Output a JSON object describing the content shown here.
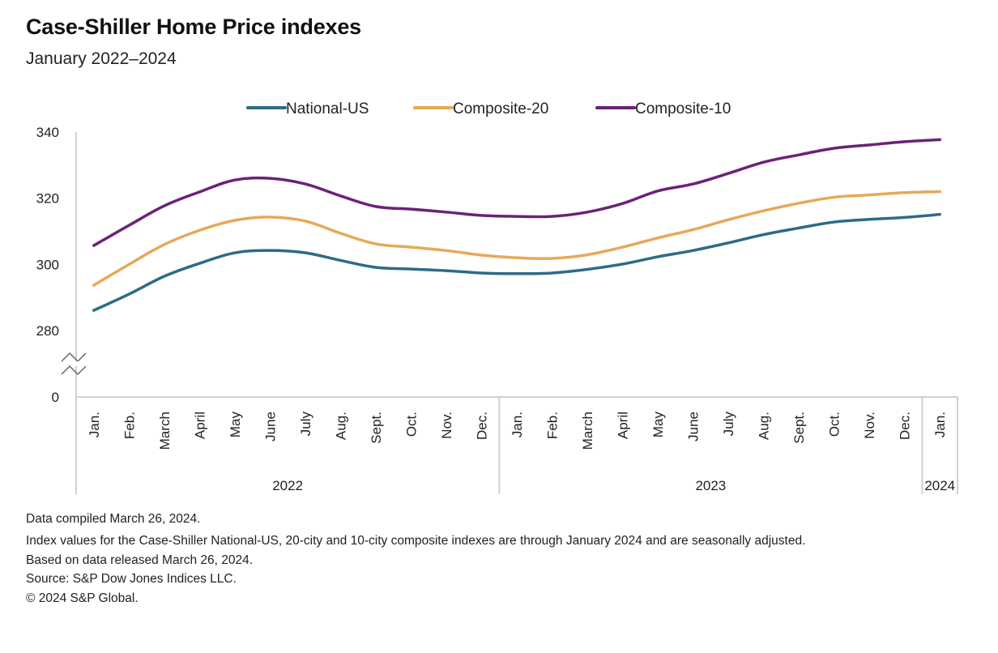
{
  "title": "Case-Shiller Home Price indexes",
  "subtitle": "January 2022–2024",
  "footnotes": [
    "Data compiled March 26, 2024.",
    "Index values for the Case-Shiller National-US, 20-city and 10-city composite indexes are through January 2024 and are seasonally adjusted.",
    "Based on data released March 26, 2024.",
    "Source: S&P Dow Jones Indices LLC.",
    "© 2024 S&P Global."
  ],
  "chart_data": {
    "type": "line",
    "title": "Case-Shiller Home Price indexes",
    "subtitle": "January 2022–2024",
    "xlabel": "",
    "ylabel": "",
    "categories": [
      "Jan.",
      "Feb.",
      "March",
      "April",
      "May",
      "June",
      "July",
      "Aug.",
      "Sept.",
      "Oct.",
      "Nov.",
      "Dec.",
      "Jan.",
      "Feb.",
      "March",
      "April",
      "May",
      "June",
      "July",
      "Aug.",
      "Sept.",
      "Oct.",
      "Nov.",
      "Dec.",
      "Jan."
    ],
    "year_groups": [
      {
        "label": "2022",
        "count": 12
      },
      {
        "label": "2023",
        "count": 12
      },
      {
        "label": "2024",
        "count": 1
      }
    ],
    "yticks": [
      0,
      280,
      300,
      320,
      340
    ],
    "ylim": [
      280,
      340
    ],
    "axis_break": "between 0 and 280",
    "grid": false,
    "legend_position": "top-center",
    "series": [
      {
        "name": "National-US",
        "color": "#2e6b87",
        "values": [
          286.1,
          291.0,
          296.4,
          300.3,
          303.5,
          304.2,
          303.5,
          301.2,
          299.1,
          298.6,
          298.1,
          297.4,
          297.2,
          297.4,
          298.5,
          300.1,
          302.3,
          304.2,
          306.5,
          309.0,
          311.0,
          312.8,
          313.6,
          314.2,
          315.1
        ]
      },
      {
        "name": "Composite-20",
        "color": "#e8a857",
        "values": [
          293.7,
          300.0,
          306.0,
          310.3,
          313.3,
          314.3,
          313.1,
          309.4,
          306.2,
          305.2,
          304.2,
          302.8,
          302.0,
          301.8,
          302.9,
          305.2,
          308.0,
          310.5,
          313.5,
          316.2,
          318.5,
          320.3,
          321.0,
          321.7,
          322.0
        ]
      },
      {
        "name": "Composite-10",
        "color": "#6b2277",
        "values": [
          305.7,
          311.8,
          317.7,
          321.9,
          325.5,
          326.0,
          324.3,
          320.7,
          317.5,
          316.7,
          315.8,
          314.8,
          314.5,
          314.5,
          315.8,
          318.4,
          322.2,
          324.3,
          327.5,
          330.9,
          333.1,
          335.1,
          336.1,
          337.1,
          337.7
        ]
      }
    ]
  }
}
